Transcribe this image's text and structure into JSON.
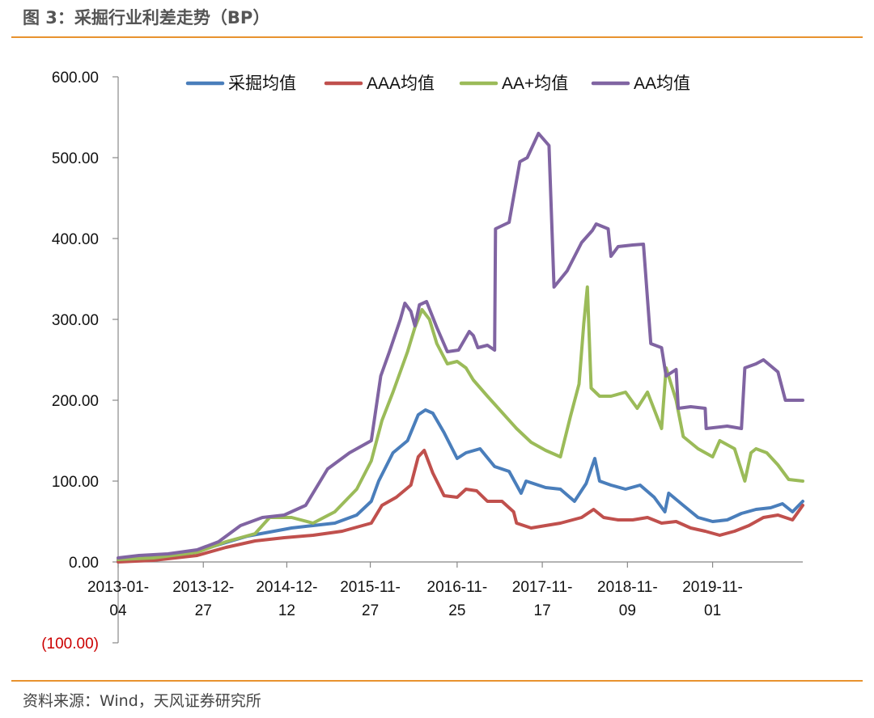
{
  "header": {
    "title": "图 3：采掘行业利差走势（BP）"
  },
  "footer": {
    "source": "资料来源：Wind，天风证券研究所"
  },
  "colors": {
    "accent_rule": "#E8922E",
    "negative_label": "#CC0000"
  },
  "chart_data": {
    "type": "line",
    "title": "",
    "xlabel": "",
    "ylabel": "",
    "ylim": [
      -100,
      600
    ],
    "y_ticks": [
      {
        "value": 600,
        "label": "600.00"
      },
      {
        "value": 500,
        "label": "500.00"
      },
      {
        "value": 400,
        "label": "400.00"
      },
      {
        "value": 300,
        "label": "300.00"
      },
      {
        "value": 200,
        "label": "200.00"
      },
      {
        "value": 100,
        "label": "100.00"
      },
      {
        "value": 0,
        "label": "0.00"
      },
      {
        "value": -100,
        "label": "(100.00)"
      }
    ],
    "x_range": [
      "2013-01-04",
      "2020-11-13"
    ],
    "x_ticks": [
      {
        "date": "2013-01-04",
        "line1": "2013-01-",
        "line2": "04"
      },
      {
        "date": "2013-12-27",
        "line1": "2013-12-",
        "line2": "27"
      },
      {
        "date": "2014-12-12",
        "line1": "2014-12-",
        "line2": "12"
      },
      {
        "date": "2015-11-27",
        "line1": "2015-11-",
        "line2": "27"
      },
      {
        "date": "2016-11-25",
        "line1": "2016-11-",
        "line2": "25"
      },
      {
        "date": "2017-11-17",
        "line1": "2017-11-",
        "line2": "17"
      },
      {
        "date": "2018-11-09",
        "line1": "2018-11-",
        "line2": "09"
      },
      {
        "date": "2019-11-01",
        "line1": "2019-11-",
        "line2": "01"
      }
    ],
    "legend_position": "top",
    "series": [
      {
        "name": "采掘均值",
        "color": "#4A7EBB",
        "points": [
          [
            "2013-01-04",
            2
          ],
          [
            "2013-04-01",
            4
          ],
          [
            "2013-07-01",
            7
          ],
          [
            "2013-10-01",
            10
          ],
          [
            "2014-01-01",
            16
          ],
          [
            "2014-04-01",
            24
          ],
          [
            "2014-07-01",
            32
          ],
          [
            "2014-10-01",
            37
          ],
          [
            "2015-01-01",
            42
          ],
          [
            "2015-04-01",
            45
          ],
          [
            "2015-07-01",
            48
          ],
          [
            "2015-10-01",
            58
          ],
          [
            "2015-12-01",
            75
          ],
          [
            "2016-01-01",
            100
          ],
          [
            "2016-03-01",
            135
          ],
          [
            "2016-05-01",
            150
          ],
          [
            "2016-06-15",
            182
          ],
          [
            "2016-07-15",
            188
          ],
          [
            "2016-08-15",
            184
          ],
          [
            "2016-10-01",
            160
          ],
          [
            "2016-11-25",
            128
          ],
          [
            "2017-01-01",
            135
          ],
          [
            "2017-03-01",
            140
          ],
          [
            "2017-05-01",
            118
          ],
          [
            "2017-07-01",
            112
          ],
          [
            "2017-08-20",
            85
          ],
          [
            "2017-09-10",
            100
          ],
          [
            "2017-12-01",
            92
          ],
          [
            "2018-02-01",
            90
          ],
          [
            "2018-04-01",
            75
          ],
          [
            "2018-05-20",
            97
          ],
          [
            "2018-06-25",
            128
          ],
          [
            "2018-07-15",
            100
          ],
          [
            "2018-09-01",
            95
          ],
          [
            "2018-11-01",
            90
          ],
          [
            "2019-01-01",
            95
          ],
          [
            "2019-03-01",
            80
          ],
          [
            "2019-04-15",
            62
          ],
          [
            "2019-05-01",
            85
          ],
          [
            "2019-07-01",
            70
          ],
          [
            "2019-09-01",
            55
          ],
          [
            "2019-11-01",
            50
          ],
          [
            "2020-01-01",
            52
          ],
          [
            "2020-03-01",
            60
          ],
          [
            "2020-05-01",
            65
          ],
          [
            "2020-07-01",
            67
          ],
          [
            "2020-08-20",
            72
          ],
          [
            "2020-10-01",
            62
          ],
          [
            "2020-11-13",
            75
          ]
        ]
      },
      {
        "name": "AAA均值",
        "color": "#C0504D",
        "points": [
          [
            "2013-01-04",
            0
          ],
          [
            "2013-06-01",
            2
          ],
          [
            "2013-12-01",
            8
          ],
          [
            "2014-04-01",
            18
          ],
          [
            "2014-08-01",
            26
          ],
          [
            "2014-12-01",
            30
          ],
          [
            "2015-04-01",
            33
          ],
          [
            "2015-08-01",
            38
          ],
          [
            "2015-12-01",
            48
          ],
          [
            "2016-01-15",
            70
          ],
          [
            "2016-03-15",
            80
          ],
          [
            "2016-05-15",
            95
          ],
          [
            "2016-06-15",
            130
          ],
          [
            "2016-07-10",
            138
          ],
          [
            "2016-08-15",
            110
          ],
          [
            "2016-10-01",
            82
          ],
          [
            "2016-11-25",
            80
          ],
          [
            "2017-01-01",
            90
          ],
          [
            "2017-02-15",
            88
          ],
          [
            "2017-04-01",
            75
          ],
          [
            "2017-06-01",
            75
          ],
          [
            "2017-07-20",
            62
          ],
          [
            "2017-08-01",
            48
          ],
          [
            "2017-10-01",
            42
          ],
          [
            "2017-12-01",
            45
          ],
          [
            "2018-02-01",
            48
          ],
          [
            "2018-05-01",
            55
          ],
          [
            "2018-06-20",
            65
          ],
          [
            "2018-08-01",
            55
          ],
          [
            "2018-10-01",
            52
          ],
          [
            "2018-12-01",
            52
          ],
          [
            "2019-02-01",
            55
          ],
          [
            "2019-04-01",
            48
          ],
          [
            "2019-06-01",
            50
          ],
          [
            "2019-08-01",
            42
          ],
          [
            "2019-10-01",
            38
          ],
          [
            "2019-12-01",
            33
          ],
          [
            "2020-02-01",
            38
          ],
          [
            "2020-04-01",
            45
          ],
          [
            "2020-06-01",
            55
          ],
          [
            "2020-08-01",
            58
          ],
          [
            "2020-10-01",
            52
          ],
          [
            "2020-11-13",
            70
          ]
        ]
      },
      {
        "name": "AA+均值",
        "color": "#9BBB59",
        "points": [
          [
            "2013-01-04",
            3
          ],
          [
            "2013-06-01",
            5
          ],
          [
            "2013-12-01",
            12
          ],
          [
            "2014-04-01",
            25
          ],
          [
            "2014-08-01",
            35
          ],
          [
            "2014-10-01",
            55
          ],
          [
            "2015-01-01",
            55
          ],
          [
            "2015-04-01",
            48
          ],
          [
            "2015-07-01",
            62
          ],
          [
            "2015-10-01",
            90
          ],
          [
            "2015-12-01",
            125
          ],
          [
            "2016-01-15",
            175
          ],
          [
            "2016-03-01",
            210
          ],
          [
            "2016-05-01",
            260
          ],
          [
            "2016-06-01",
            290
          ],
          [
            "2016-07-01",
            312
          ],
          [
            "2016-08-01",
            300
          ],
          [
            "2016-09-01",
            270
          ],
          [
            "2016-10-15",
            245
          ],
          [
            "2016-11-25",
            248
          ],
          [
            "2017-01-01",
            240
          ],
          [
            "2017-02-01",
            225
          ],
          [
            "2017-04-01",
            205
          ],
          [
            "2017-06-01",
            185
          ],
          [
            "2017-08-01",
            165
          ],
          [
            "2017-10-01",
            148
          ],
          [
            "2017-12-01",
            138
          ],
          [
            "2018-02-01",
            130
          ],
          [
            "2018-03-15",
            180
          ],
          [
            "2018-04-20",
            220
          ],
          [
            "2018-05-10",
            295
          ],
          [
            "2018-05-25",
            340
          ],
          [
            "2018-06-10",
            215
          ],
          [
            "2018-07-15",
            205
          ],
          [
            "2018-09-01",
            205
          ],
          [
            "2018-11-01",
            210
          ],
          [
            "2018-12-20",
            190
          ],
          [
            "2019-02-01",
            210
          ],
          [
            "2019-04-01",
            165
          ],
          [
            "2019-04-20",
            240
          ],
          [
            "2019-06-01",
            200
          ],
          [
            "2019-07-01",
            155
          ],
          [
            "2019-09-01",
            140
          ],
          [
            "2019-11-01",
            130
          ],
          [
            "2019-12-01",
            150
          ],
          [
            "2020-02-01",
            140
          ],
          [
            "2020-03-15",
            100
          ],
          [
            "2020-04-10",
            135
          ],
          [
            "2020-05-01",
            140
          ],
          [
            "2020-06-15",
            135
          ],
          [
            "2020-08-01",
            120
          ],
          [
            "2020-09-15",
            102
          ],
          [
            "2020-11-13",
            100
          ]
        ]
      },
      {
        "name": "AA均值",
        "color": "#8064A2",
        "points": [
          [
            "2013-01-04",
            5
          ],
          [
            "2013-04-01",
            8
          ],
          [
            "2013-08-01",
            10
          ],
          [
            "2013-12-01",
            15
          ],
          [
            "2014-03-01",
            25
          ],
          [
            "2014-06-01",
            45
          ],
          [
            "2014-09-01",
            55
          ],
          [
            "2014-12-01",
            58
          ],
          [
            "2015-03-01",
            70
          ],
          [
            "2015-06-01",
            115
          ],
          [
            "2015-09-01",
            135
          ],
          [
            "2015-12-01",
            150
          ],
          [
            "2016-01-10",
            230
          ],
          [
            "2016-02-15",
            260
          ],
          [
            "2016-04-01",
            300
          ],
          [
            "2016-04-20",
            320
          ],
          [
            "2016-05-15",
            310
          ],
          [
            "2016-06-01",
            292
          ],
          [
            "2016-06-20",
            318
          ],
          [
            "2016-07-20",
            322
          ],
          [
            "2016-09-01",
            290
          ],
          [
            "2016-10-15",
            260
          ],
          [
            "2016-12-01",
            262
          ],
          [
            "2017-01-15",
            285
          ],
          [
            "2017-02-01",
            280
          ],
          [
            "2017-02-20",
            265
          ],
          [
            "2017-04-01",
            268
          ],
          [
            "2017-05-01",
            262
          ],
          [
            "2017-05-05",
            412
          ],
          [
            "2017-07-01",
            420
          ],
          [
            "2017-08-15",
            495
          ],
          [
            "2017-09-15",
            500
          ],
          [
            "2017-11-01",
            530
          ],
          [
            "2017-12-15",
            515
          ],
          [
            "2018-01-05",
            340
          ],
          [
            "2018-03-01",
            360
          ],
          [
            "2018-05-01",
            395
          ],
          [
            "2018-06-15",
            410
          ],
          [
            "2018-07-01",
            418
          ],
          [
            "2018-08-20",
            412
          ],
          [
            "2018-09-01",
            378
          ],
          [
            "2018-10-01",
            390
          ],
          [
            "2018-12-01",
            392
          ],
          [
            "2019-01-15",
            393
          ],
          [
            "2019-02-15",
            270
          ],
          [
            "2019-04-01",
            265
          ],
          [
            "2019-04-20",
            230
          ],
          [
            "2019-06-01",
            238
          ],
          [
            "2019-06-10",
            190
          ],
          [
            "2019-08-01",
            192
          ],
          [
            "2019-10-01",
            190
          ],
          [
            "2019-10-05",
            165
          ],
          [
            "2020-01-01",
            168
          ],
          [
            "2020-03-01",
            165
          ],
          [
            "2020-03-15",
            240
          ],
          [
            "2020-05-01",
            245
          ],
          [
            "2020-06-01",
            250
          ],
          [
            "2020-08-01",
            235
          ],
          [
            "2020-09-01",
            200
          ],
          [
            "2020-11-13",
            200
          ]
        ]
      }
    ]
  }
}
